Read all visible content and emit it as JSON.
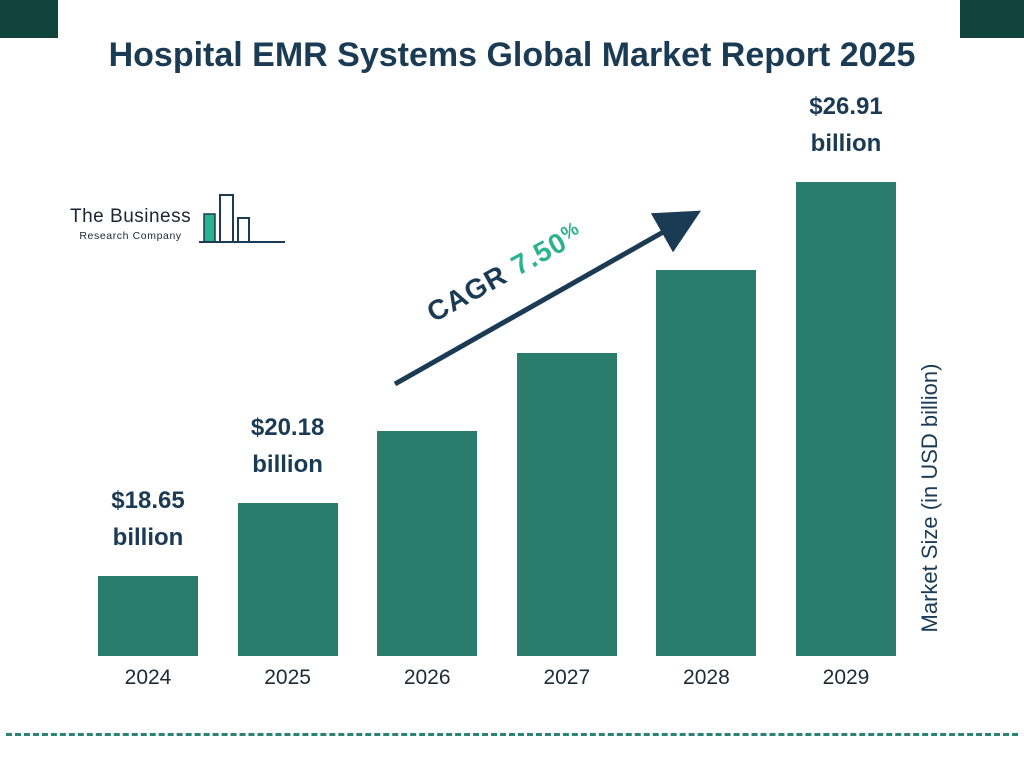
{
  "title": "Hospital EMR Systems Global Market Report 2025",
  "logo": {
    "line1": "The Business",
    "line2": "Research Company"
  },
  "chart_data": {
    "type": "bar",
    "categories": [
      "2024",
      "2025",
      "2026",
      "2027",
      "2028",
      "2029"
    ],
    "values": [
      18.65,
      20.18,
      21.69,
      23.32,
      25.07,
      26.91
    ],
    "bar_labels": [
      {
        "index": 0,
        "line1": "$18.65",
        "line2": "billion"
      },
      {
        "index": 1,
        "line1": "$20.18",
        "line2": "billion"
      },
      {
        "index": 5,
        "line1": "$26.91",
        "line2": "billion"
      }
    ],
    "ylabel": "Market Size (in USD billion)",
    "xlabel": "",
    "annotations": {
      "cagr_label": "CAGR",
      "cagr_value": "7.50",
      "cagr_suffix": "%"
    },
    "legend": null,
    "grid": false,
    "colors": {
      "bar": "#2a7d6c",
      "title": "#1b3b55",
      "cagr_teal": "#2bb390",
      "arrow": "#1b3b55",
      "dashed_line": "#2a8374"
    }
  }
}
